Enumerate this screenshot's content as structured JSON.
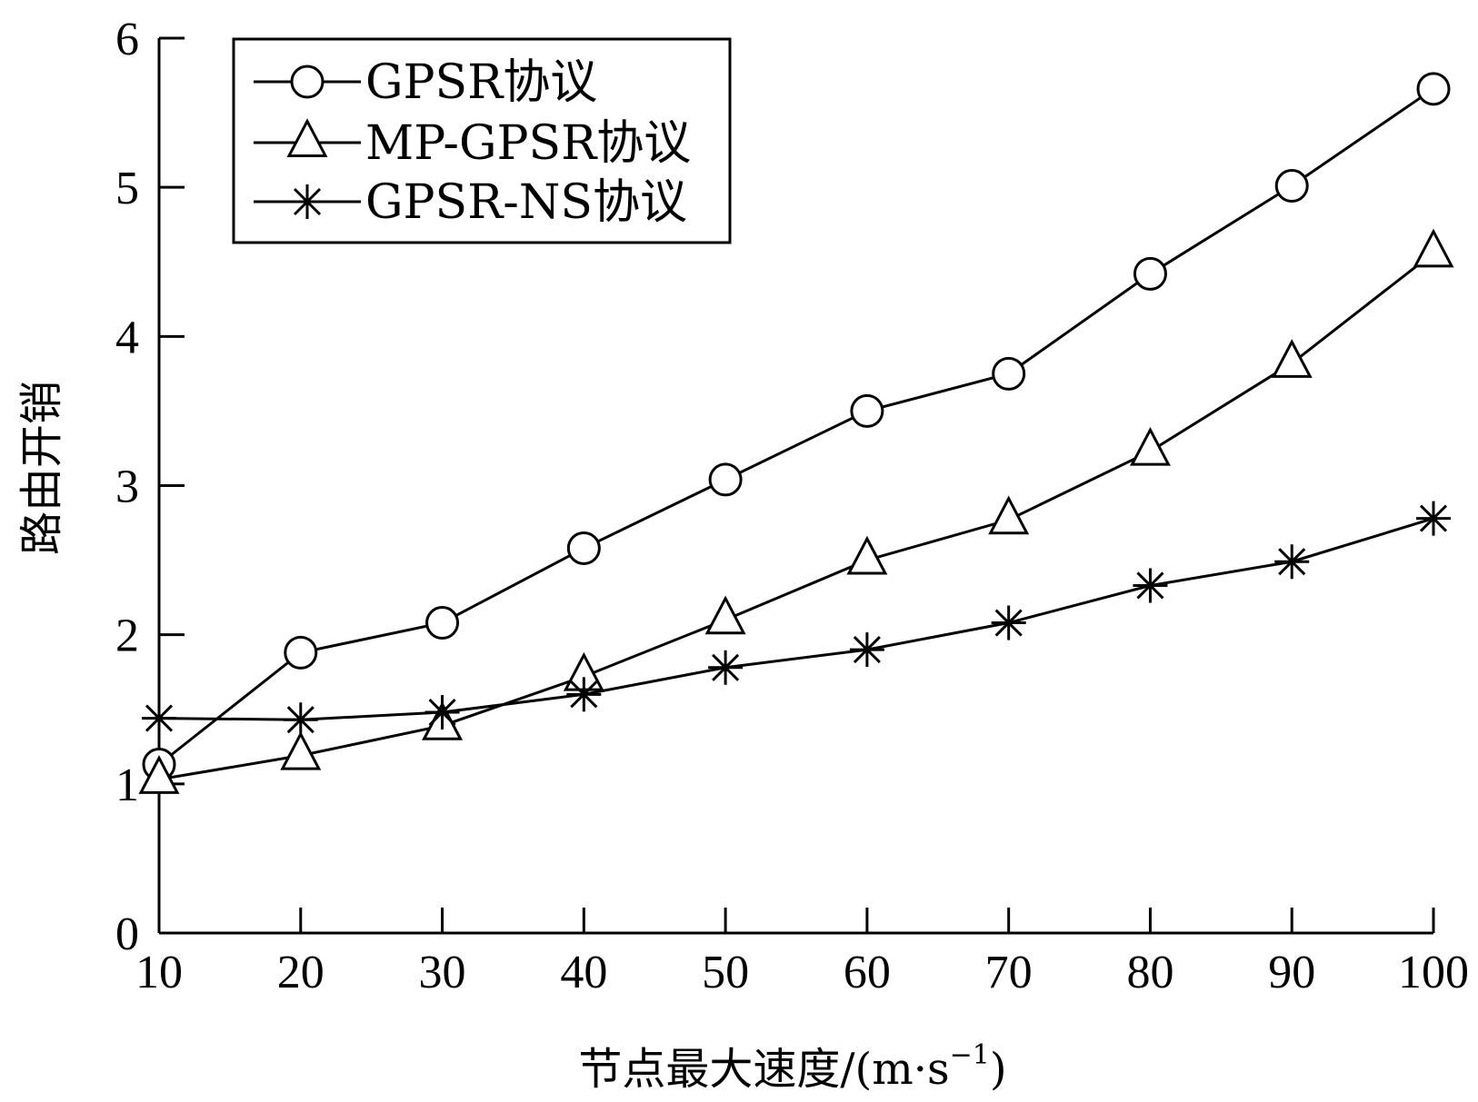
{
  "chart_data": {
    "type": "line",
    "title": "",
    "xlabel": "节点最大速度/(m·s",
    "xlabel_sup": "−1",
    "xlabel_close": ")",
    "ylabel": "路由开销",
    "xlim": [
      10,
      100
    ],
    "ylim": [
      0,
      6
    ],
    "x": [
      10,
      20,
      30,
      40,
      50,
      60,
      70,
      80,
      90,
      100
    ],
    "x_ticks": [
      "10",
      "20",
      "30",
      "40",
      "50",
      "60",
      "70",
      "80",
      "90",
      "100"
    ],
    "y_ticks": [
      "0",
      "1",
      "2",
      "3",
      "4",
      "5",
      "6"
    ],
    "grid": false,
    "legend_position": "top-left",
    "series": [
      {
        "name": "GPSR协议",
        "marker": "circle",
        "values": [
          1.13,
          1.88,
          2.08,
          2.58,
          3.04,
          3.5,
          3.75,
          4.42,
          5.01,
          5.66
        ]
      },
      {
        "name": "MP-GPSR协议",
        "marker": "triangle",
        "values": [
          1.03,
          1.19,
          1.39,
          1.72,
          2.1,
          2.5,
          2.77,
          3.23,
          3.82,
          4.56
        ]
      },
      {
        "name": "GPSR-NS协议",
        "marker": "asterisk",
        "values": [
          1.44,
          1.43,
          1.48,
          1.6,
          1.78,
          1.9,
          2.08,
          2.33,
          2.49,
          2.78
        ]
      }
    ],
    "colors": {
      "line": "#000000",
      "background": "#ffffff"
    }
  }
}
